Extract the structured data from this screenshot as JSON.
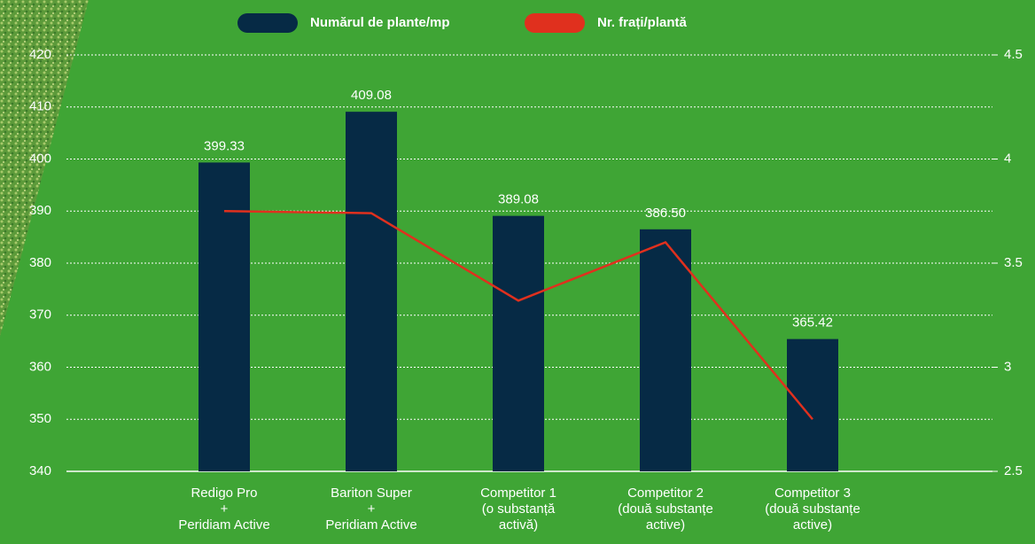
{
  "chart_data": {
    "type": "bar",
    "categories": [
      [
        "Redigo Pro",
        "+",
        "Peridiam Active"
      ],
      [
        "Bariton Super",
        "+",
        "Peridiam Active"
      ],
      [
        "Competitor 1",
        "(o substanță",
        "activă)"
      ],
      [
        "Competitor 2",
        "(două substanțe",
        "active)"
      ],
      [
        "Competitor 3",
        "(două substanțe",
        "active)"
      ]
    ],
    "series": [
      {
        "name": "Numărul de plante/mp",
        "type": "bar",
        "color": "#062a45",
        "values": [
          399.33,
          409.08,
          389.08,
          386.5,
          365.42
        ],
        "value_labels": [
          "399.33",
          "409.08",
          "389.08",
          "386.50",
          "365.42"
        ]
      },
      {
        "name": "Nr. frați/plantă",
        "type": "line",
        "axis": "y2",
        "color": "#e0301e",
        "values": [
          3.75,
          3.74,
          3.32,
          3.6,
          2.75
        ]
      }
    ],
    "ylim": [
      340,
      420
    ],
    "yticks": [
      340,
      350,
      360,
      370,
      380,
      390,
      400,
      410,
      420
    ],
    "y2lim": [
      2.5,
      4.5
    ],
    "y2ticks": [
      2.5,
      3,
      3.5,
      4,
      4.5
    ],
    "grid": true,
    "legend": "top"
  }
}
